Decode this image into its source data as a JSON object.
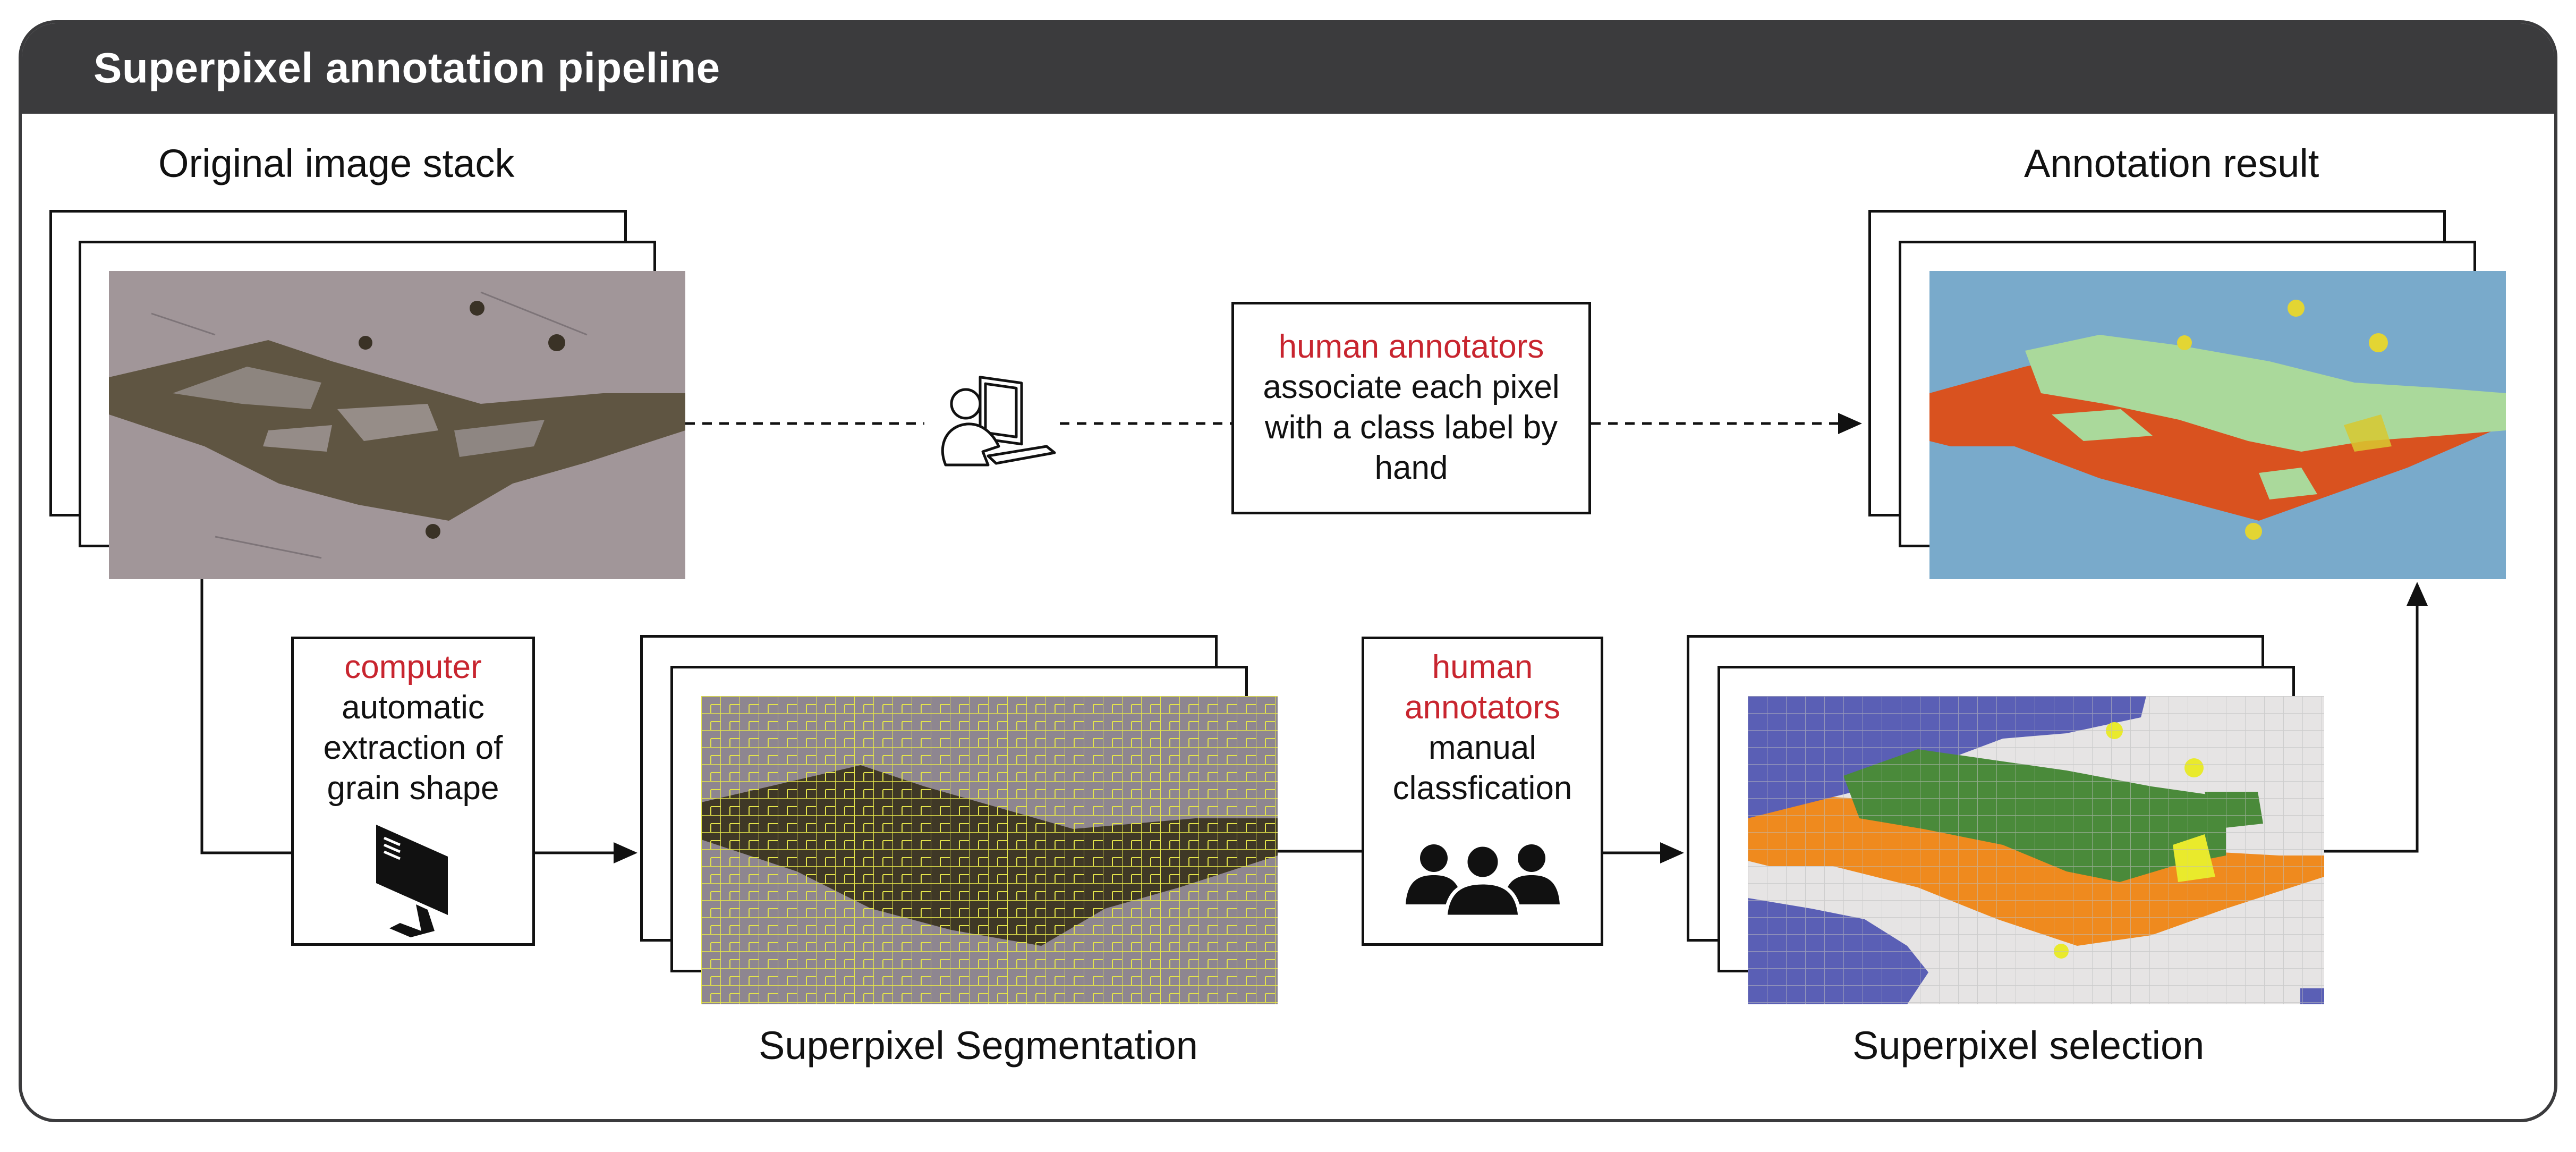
{
  "panel": {
    "title": "Superpixel annotation pipeline"
  },
  "captions": {
    "original_stack": "Original image stack",
    "annotation_result": "Annotation result",
    "superpixel_segmentation": "Superpixel Segmentation",
    "superpixel_selection": "Superpixel selection"
  },
  "boxes": {
    "human_hand": {
      "actor": "human annotators",
      "lines": [
        "associate each pixel",
        "with a class label by",
        "hand"
      ]
    },
    "computer": {
      "actor": "computer",
      "lines": [
        "automatic",
        "extraction of",
        "grain shape"
      ]
    },
    "human_manual": {
      "actor_lines": [
        "human",
        "annotators"
      ],
      "lines": [
        "manual",
        "classfication"
      ]
    }
  },
  "icons": {
    "person_at_computer": "person-at-computer-icon",
    "monitor": "monitor-icon",
    "group": "group-of-people-icon"
  },
  "colors": {
    "header": "#3b3b3d",
    "accent_red": "#c8252f",
    "micro_bg": "#9e9498",
    "micro_grain": "#5a4e3a",
    "seg_lines": "#e6e64a",
    "result_bg": "#77a9c9",
    "result_green": "#a9d99a",
    "result_red": "#d8511f",
    "result_yellow": "#e3d533",
    "sel_blue": "#5a5fb5",
    "sel_white": "#e6e4e4",
    "sel_orange": "#ef8a1e",
    "sel_green": "#4a8a3a",
    "sel_yellow": "#e9ea2c"
  }
}
